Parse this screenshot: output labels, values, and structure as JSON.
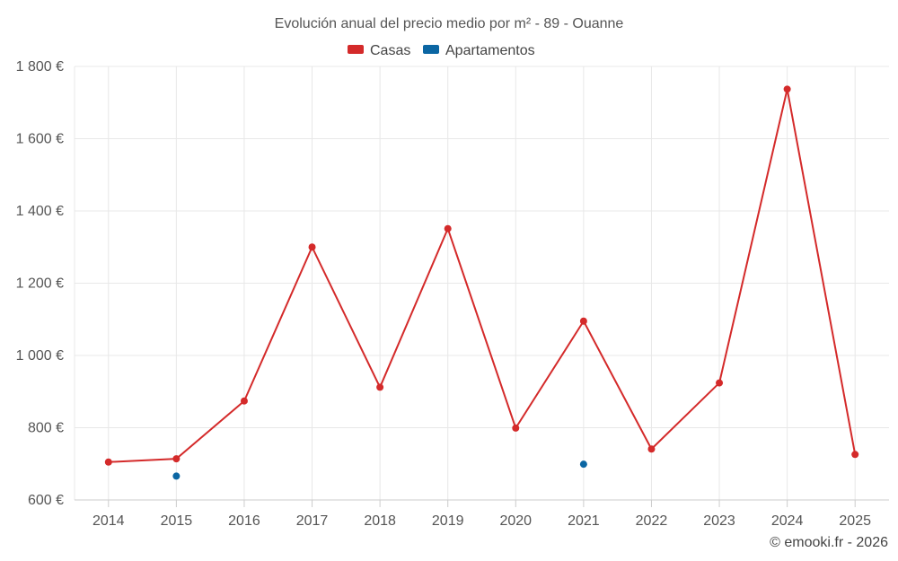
{
  "chart_data": {
    "type": "line",
    "title": "Evolución anual del precio medio por m² - 89 - Ouanne",
    "credit": "© emooki.fr - 2026",
    "categories": [
      "2014",
      "2015",
      "2016",
      "2017",
      "2018",
      "2019",
      "2020",
      "2021",
      "2022",
      "2023",
      "2024",
      "2025"
    ],
    "ylim": [
      600,
      1800
    ],
    "yticks": [
      600,
      800,
      1000,
      1200,
      1400,
      1600,
      1800
    ],
    "ytick_labels": [
      "600 €",
      "800 €",
      "1 000 €",
      "1 200 €",
      "1 400 €",
      "1 600 €",
      "1 800 €"
    ],
    "grid": true,
    "legend_position": "top-center",
    "series": [
      {
        "name": "Casas",
        "color": "#d42a2a",
        "style": "line-with-markers",
        "values": [
          705,
          714,
          874,
          1300,
          912,
          1351,
          799,
          1095,
          741,
          924,
          1737,
          726
        ]
      },
      {
        "name": "Apartamentos",
        "color": "#0b66a3",
        "style": "markers-only",
        "values": [
          null,
          666,
          null,
          null,
          null,
          null,
          null,
          699,
          null,
          null,
          null,
          null
        ]
      }
    ]
  }
}
